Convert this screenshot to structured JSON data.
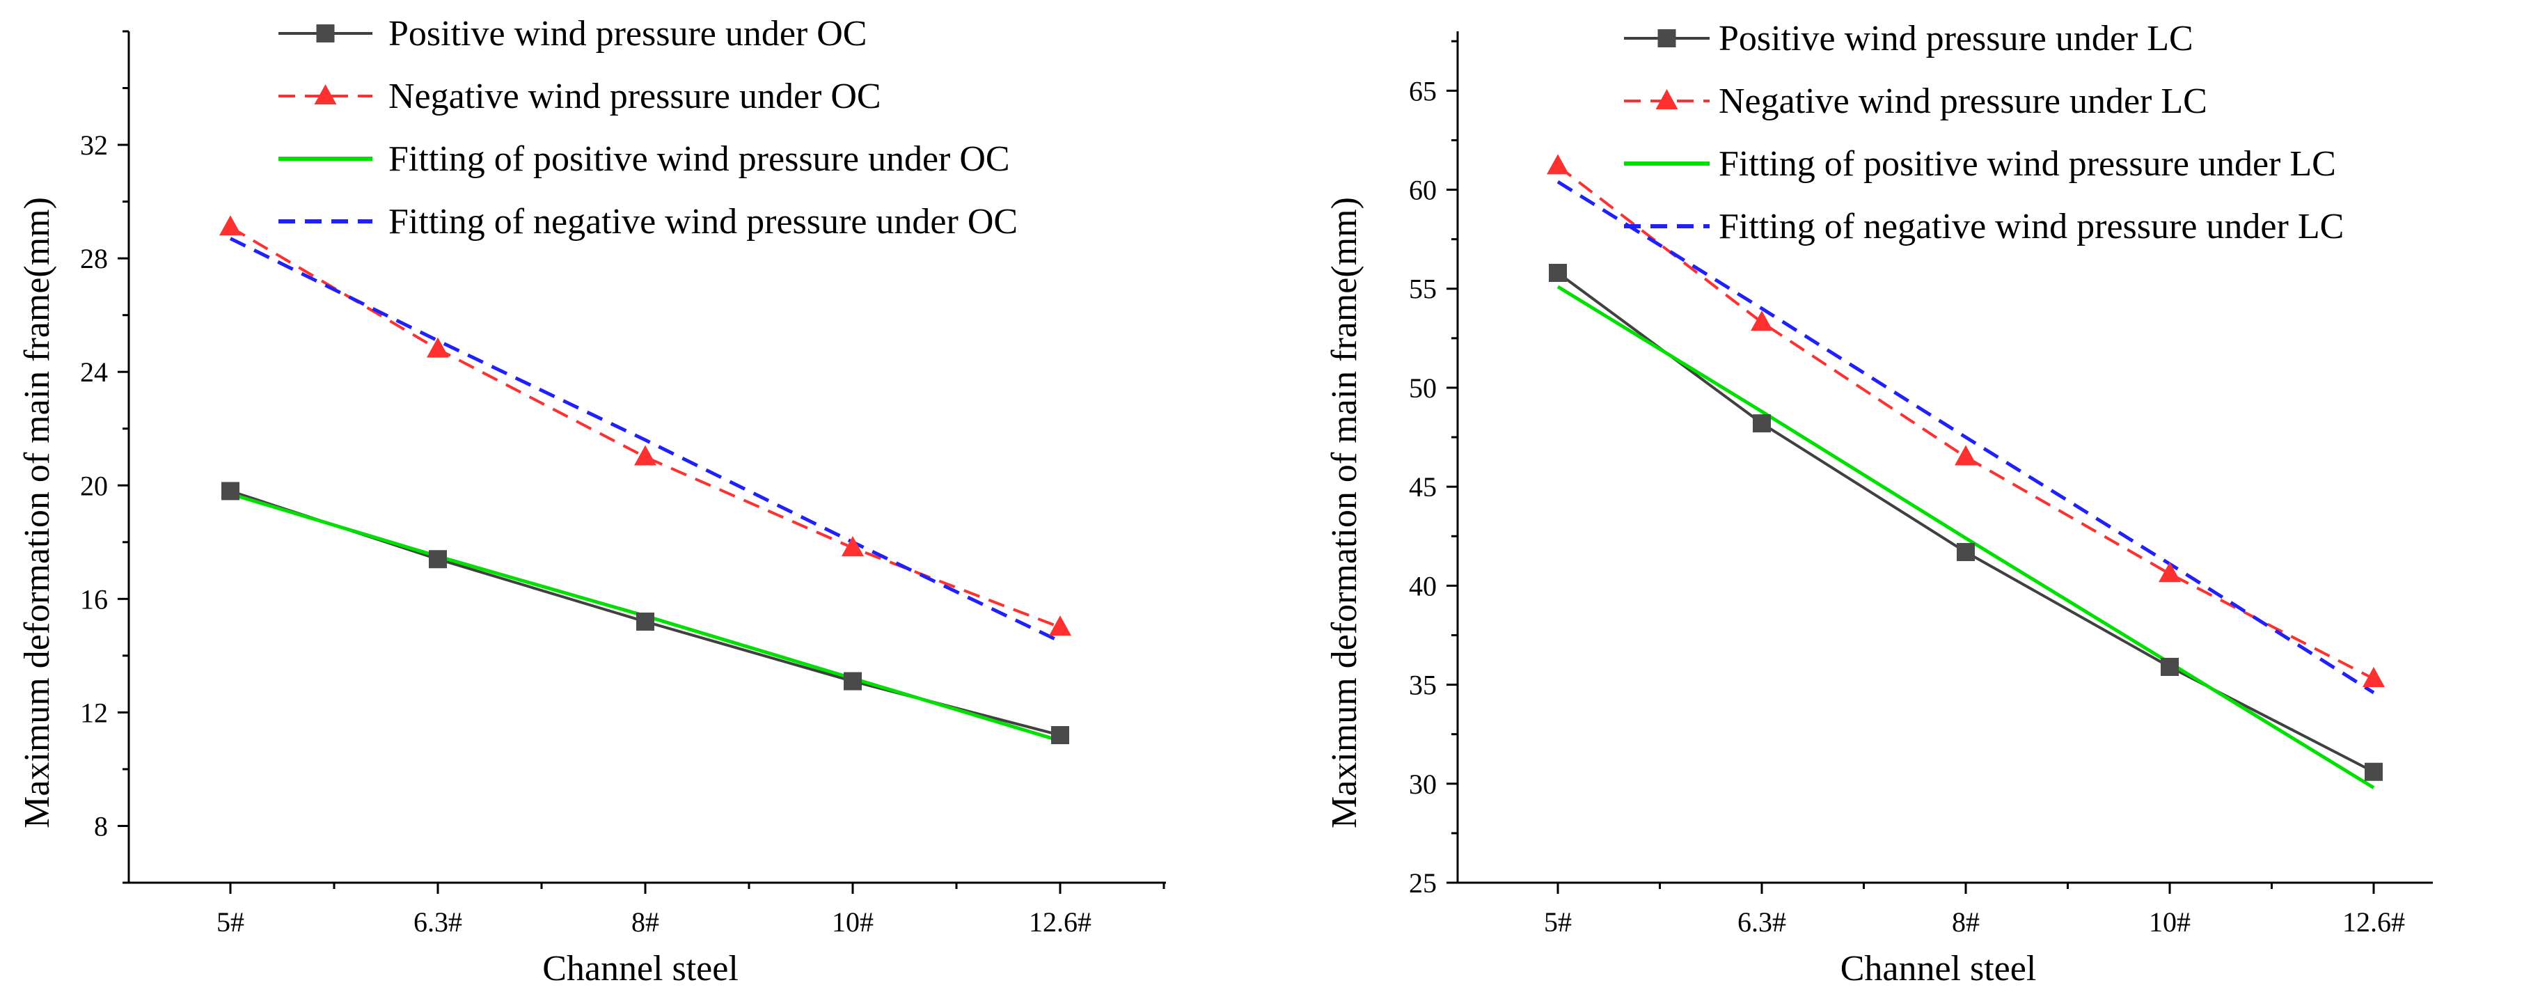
{
  "chart_data": [
    {
      "type": "line",
      "xlabel": "Channel steel",
      "ylabel": "Maximum deformation of main frame(mm)",
      "categories": [
        "5#",
        "6.3#",
        "8#",
        "10#",
        "12.6#"
      ],
      "ylim": [
        6,
        36
      ],
      "yticks": [
        8,
        12,
        16,
        20,
        24,
        28,
        32
      ],
      "grid": false,
      "legend_position": "top",
      "series": [
        {
          "name": "Positive wind pressure under OC",
          "values": [
            19.8,
            17.4,
            15.2,
            13.1,
            11.2
          ],
          "color": "#404040",
          "dash": "solid",
          "marker": "square"
        },
        {
          "name": "Negative wind pressure under OC",
          "values": [
            29.1,
            24.8,
            21.0,
            17.8,
            15.0
          ],
          "color": "#ff3030",
          "dash": "dashed",
          "marker": "triangle"
        },
        {
          "name": "Fitting of positive wind pressure under OC",
          "values": [
            19.7,
            17.5,
            15.4,
            13.2,
            11.0
          ],
          "color": "#00e000",
          "dash": "solid",
          "marker": "none"
        },
        {
          "name": "Fitting of negative wind pressure under OC",
          "values": [
            28.7,
            25.1,
            21.6,
            18.0,
            14.5
          ],
          "color": "#2020ff",
          "dash": "dashed",
          "marker": "none"
        }
      ]
    },
    {
      "type": "line",
      "xlabel": "Channel steel",
      "ylabel": "Maximum deformation of main frame(mm)",
      "categories": [
        "5#",
        "6.3#",
        "8#",
        "10#",
        "12.6#"
      ],
      "ylim": [
        25,
        68
      ],
      "yticks": [
        25,
        30,
        35,
        40,
        45,
        50,
        55,
        60,
        65
      ],
      "grid": false,
      "legend_position": "top",
      "series": [
        {
          "name": "Positive wind pressure under LC",
          "values": [
            55.8,
            48.2,
            41.7,
            35.9,
            30.6
          ],
          "color": "#404040",
          "dash": "solid",
          "marker": "square"
        },
        {
          "name": "Negative wind pressure under LC",
          "values": [
            61.2,
            53.3,
            46.5,
            40.6,
            35.3
          ],
          "color": "#ff3030",
          "dash": "dashed",
          "marker": "triangle"
        },
        {
          "name": "Fitting of positive wind pressure under LC",
          "values": [
            55.1,
            48.8,
            42.4,
            36.1,
            29.8
          ],
          "color": "#00e000",
          "dash": "solid",
          "marker": "none"
        },
        {
          "name": "Fitting of negative wind pressure under LC",
          "values": [
            60.4,
            54.0,
            47.5,
            41.1,
            34.6
          ],
          "color": "#2020ff",
          "dash": "dashed",
          "marker": "none"
        }
      ]
    }
  ]
}
